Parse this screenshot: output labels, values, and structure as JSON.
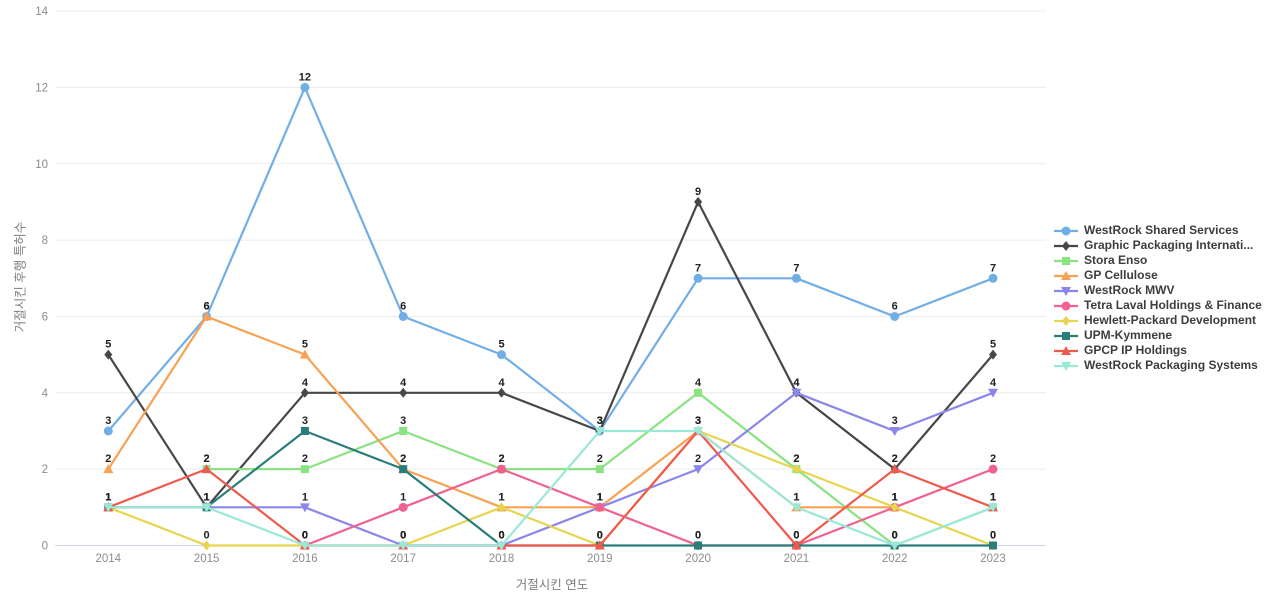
{
  "chart_data": {
    "type": "line",
    "title": "",
    "xlabel": "거절시킨 연도",
    "ylabel": "거절시킨 후행 특허수",
    "x": [
      2014,
      2015,
      2016,
      2017,
      2018,
      2019,
      2020,
      2021,
      2022,
      2023
    ],
    "ylim": [
      0,
      14
    ],
    "yticks": [
      0,
      2,
      4,
      6,
      8,
      10,
      12,
      14
    ],
    "grid": true,
    "legend_position": "right",
    "point_labels": true,
    "series": [
      {
        "name": "WestRock Shared Services",
        "color": "#72AEE6",
        "marker": "circle",
        "values": [
          3,
          6,
          12,
          6,
          5,
          3,
          7,
          7,
          6,
          7
        ]
      },
      {
        "name": "Graphic Packaging Internati...",
        "color": "#474747",
        "marker": "diamond",
        "values": [
          5,
          1,
          4,
          4,
          4,
          3,
          9,
          4,
          2,
          5
        ]
      },
      {
        "name": "Stora Enso",
        "color": "#8BE283",
        "marker": "square",
        "values": [
          null,
          2,
          2,
          3,
          2,
          2,
          4,
          2,
          0,
          1
        ]
      },
      {
        "name": "GP Cellulose",
        "color": "#F7A254",
        "marker": "triangle-up",
        "values": [
          2,
          6,
          5,
          2,
          1,
          1,
          3,
          1,
          1,
          null
        ]
      },
      {
        "name": "WestRock MWV",
        "color": "#8B87EA",
        "marker": "triangle-down",
        "values": [
          null,
          1,
          1,
          0,
          0,
          1,
          2,
          4,
          3,
          4
        ]
      },
      {
        "name": "Tetra Laval Holdings & Finance",
        "color": "#F0618F",
        "marker": "circle",
        "values": [
          null,
          null,
          0,
          1,
          2,
          1,
          0,
          0,
          1,
          2
        ]
      },
      {
        "name": "Hewlett-Packard Development",
        "color": "#E8D44F",
        "marker": "diamond",
        "values": [
          1,
          0,
          0,
          0,
          1,
          0,
          3,
          2,
          1,
          0
        ]
      },
      {
        "name": "UPM-Kymmene",
        "color": "#2A7E79",
        "marker": "square",
        "values": [
          1,
          1,
          3,
          2,
          0,
          0,
          0,
          0,
          0,
          0
        ]
      },
      {
        "name": "GPCP IP Holdings",
        "color": "#EF5A4E",
        "marker": "triangle-up",
        "values": [
          1,
          2,
          0,
          0,
          0,
          0,
          3,
          0,
          2,
          1
        ]
      },
      {
        "name": "WestRock Packaging Systems",
        "color": "#9BE8D8",
        "marker": "triangle-down",
        "values": [
          1,
          1,
          0,
          0,
          0,
          3,
          3,
          1,
          0,
          1
        ]
      }
    ],
    "colors": {
      "gridline": "#ececec",
      "zeroline": "#ccd5e8",
      "tick_text": "#8c8c8c",
      "point_label_text": "#222222",
      "legend_text": "#3d3d3d",
      "background": "#ffffff"
    }
  }
}
